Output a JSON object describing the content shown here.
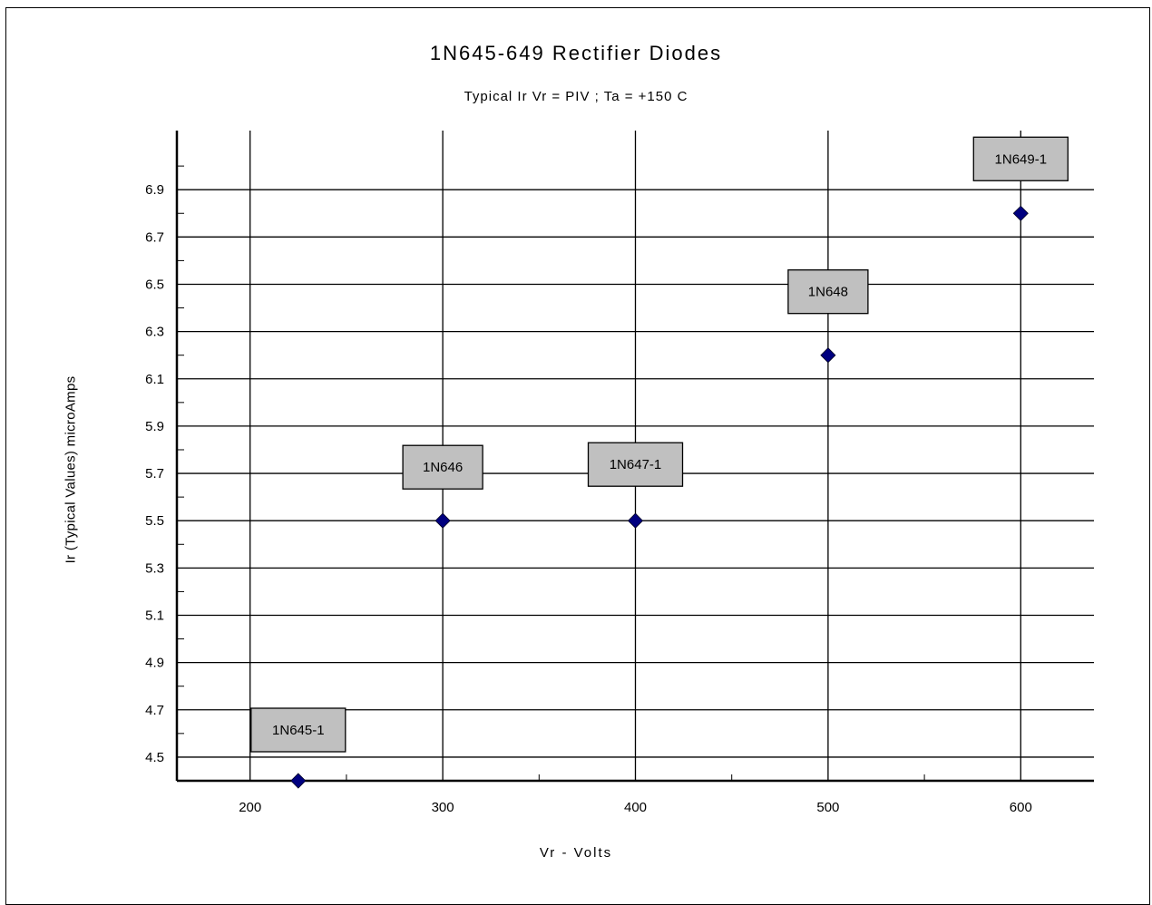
{
  "chart_data": {
    "type": "scatter",
    "title": "1N645-649 Rectifier Diodes",
    "subtitle": "Typical Ir Vr = PIV ; Ta = +150 C",
    "xlabel": "Vr - Volts",
    "ylabel": "Ir (Typical Values) microAmps",
    "xlim": [
      162,
      638
    ],
    "ylim": [
      4.4,
      7.15
    ],
    "x_ticks": [
      200,
      300,
      400,
      500,
      600
    ],
    "y_ticks": [
      4.5,
      4.7,
      4.9,
      5.1,
      5.3,
      5.5,
      5.7,
      5.9,
      6.1,
      6.3,
      6.5,
      6.7,
      6.9
    ],
    "grid": true,
    "marker_color": "#000080",
    "points": [
      {
        "label": "1N645-1",
        "x": 225,
        "y": 4.4
      },
      {
        "label": "1N646",
        "x": 300,
        "y": 5.5
      },
      {
        "label": "1N647-1",
        "x": 400,
        "y": 5.5
      },
      {
        "label": "1N648",
        "x": 500,
        "y": 6.2
      },
      {
        "label": "1N649-1",
        "x": 600,
        "y": 6.8
      }
    ]
  }
}
